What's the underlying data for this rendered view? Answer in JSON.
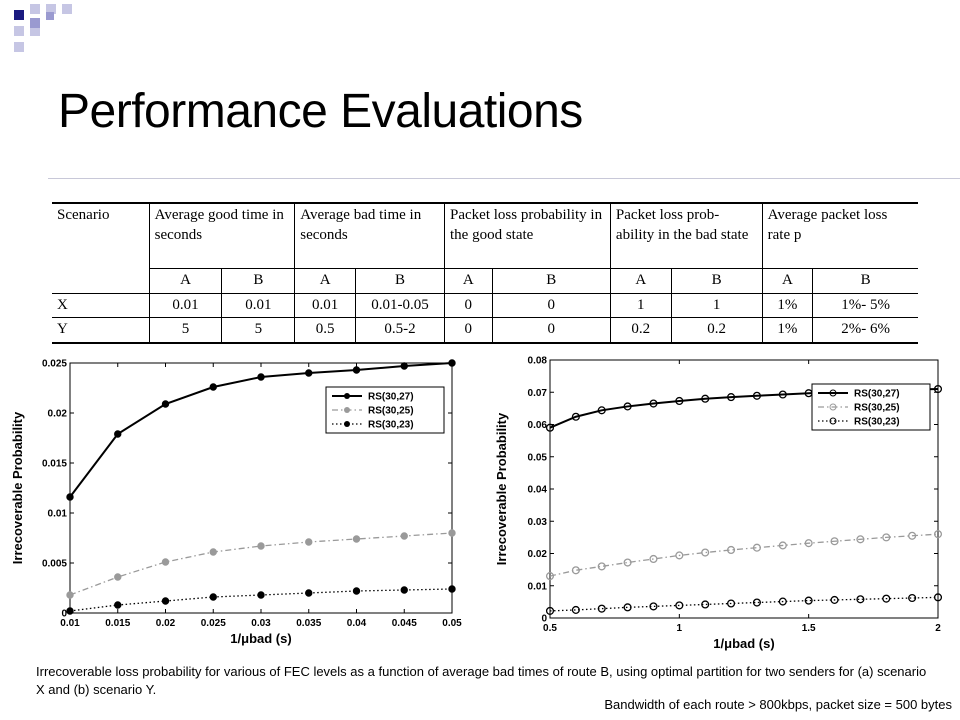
{
  "slide": {
    "title": "Performance Evaluations",
    "caption": "Irrecoverable loss probability for various of FEC levels as a function of average bad times of route B, using optimal partition for two senders for (a) scenario X and (b) scenario Y.",
    "footnote": "Bandwidth of each route > 800kbps, packet size = 500 bytes"
  },
  "table": {
    "headers": [
      "Scenario",
      "Average good time in seconds",
      "Average bad time in seconds",
      "Packet loss probability in the good state",
      "Packet loss prob-ability in the bad state",
      "Average packet loss rate p"
    ],
    "sub": [
      "A",
      "B"
    ],
    "rows": [
      {
        "scenario": "X",
        "cells": [
          "0.01",
          "0.01",
          "0.01",
          "0.01-0.05",
          "0",
          "0",
          "1",
          "1",
          "1%",
          "1%- 5%"
        ]
      },
      {
        "scenario": "Y",
        "cells": [
          "5",
          "5",
          "0.5",
          "0.5-2",
          "0",
          "0",
          "0.2",
          "0.2",
          "1%",
          "2%- 6%"
        ]
      }
    ]
  },
  "chart_data": [
    {
      "type": "line",
      "xlabel": "1/μbad (s)",
      "ylabel": "Irrecoverable Probability",
      "xlim": [
        0.01,
        0.05
      ],
      "ylim": [
        0,
        0.025
      ],
      "xticks": [
        "0.01",
        "0.015",
        "0.02",
        "0.025",
        "0.03",
        "0.035",
        "0.04",
        "0.045",
        "0.05"
      ],
      "yticks": [
        "0",
        "0.005",
        "0.01",
        "0.015",
        "0.02",
        "0.025"
      ],
      "legend_position": "top-right",
      "grid": false,
      "x": [
        0.01,
        0.015,
        0.02,
        0.025,
        0.03,
        0.035,
        0.04,
        0.045,
        0.05
      ],
      "series": [
        {
          "name": "RS(30,27)",
          "values": [
            0.0116,
            0.0179,
            0.0209,
            0.0226,
            0.0236,
            0.024,
            0.0243,
            0.0247,
            0.025
          ],
          "color": "#000000",
          "style": "solid",
          "marker": "filled"
        },
        {
          "name": "RS(30,25)",
          "values": [
            0.0018,
            0.0036,
            0.0051,
            0.0061,
            0.0067,
            0.0071,
            0.0074,
            0.0077,
            0.008
          ],
          "color": "#9a9a9a",
          "style": "dashdot",
          "marker": "filled"
        },
        {
          "name": "RS(30,23)",
          "values": [
            0.0002,
            0.0008,
            0.0012,
            0.0016,
            0.0018,
            0.002,
            0.0022,
            0.0023,
            0.0024
          ],
          "color": "#000000",
          "style": "dotted",
          "marker": "filled"
        }
      ]
    },
    {
      "type": "line",
      "xlabel": "1/μbad (s)",
      "ylabel": "Irrecoverable Probability",
      "xlim": [
        0.5,
        2
      ],
      "ylim": [
        0,
        0.08
      ],
      "xticks": [
        "0.5",
        "1",
        "1.5",
        "2"
      ],
      "yticks": [
        "0",
        "0.01",
        "0.02",
        "0.03",
        "0.04",
        "0.05",
        "0.06",
        "0.07",
        "0.08"
      ],
      "legend_position": "top-right",
      "grid": false,
      "x": [
        0.5,
        0.6,
        0.7,
        0.8,
        0.9,
        1.0,
        1.1,
        1.2,
        1.3,
        1.4,
        1.5,
        1.6,
        1.7,
        1.8,
        1.9,
        2.0
      ],
      "series": [
        {
          "name": "RS(30,27)",
          "values": [
            0.059,
            0.0624,
            0.0644,
            0.0656,
            0.0665,
            0.0673,
            0.068,
            0.0685,
            0.0689,
            0.0693,
            0.0697,
            0.07,
            0.0703,
            0.0706,
            0.0708,
            0.071
          ],
          "color": "#000000",
          "style": "solid",
          "marker": "open"
        },
        {
          "name": "RS(30,25)",
          "values": [
            0.013,
            0.0148,
            0.016,
            0.0172,
            0.0183,
            0.0194,
            0.0203,
            0.0211,
            0.0218,
            0.0225,
            0.0232,
            0.0238,
            0.0244,
            0.025,
            0.0255,
            0.026
          ],
          "color": "#9a9a9a",
          "style": "dashdot",
          "marker": "open"
        },
        {
          "name": "RS(30,23)",
          "values": [
            0.0022,
            0.0025,
            0.0029,
            0.0033,
            0.0036,
            0.0039,
            0.0042,
            0.0045,
            0.0048,
            0.0051,
            0.0054,
            0.0056,
            0.0058,
            0.006,
            0.0062,
            0.0064
          ],
          "color": "#000000",
          "style": "dotted",
          "marker": "open"
        }
      ]
    }
  ]
}
